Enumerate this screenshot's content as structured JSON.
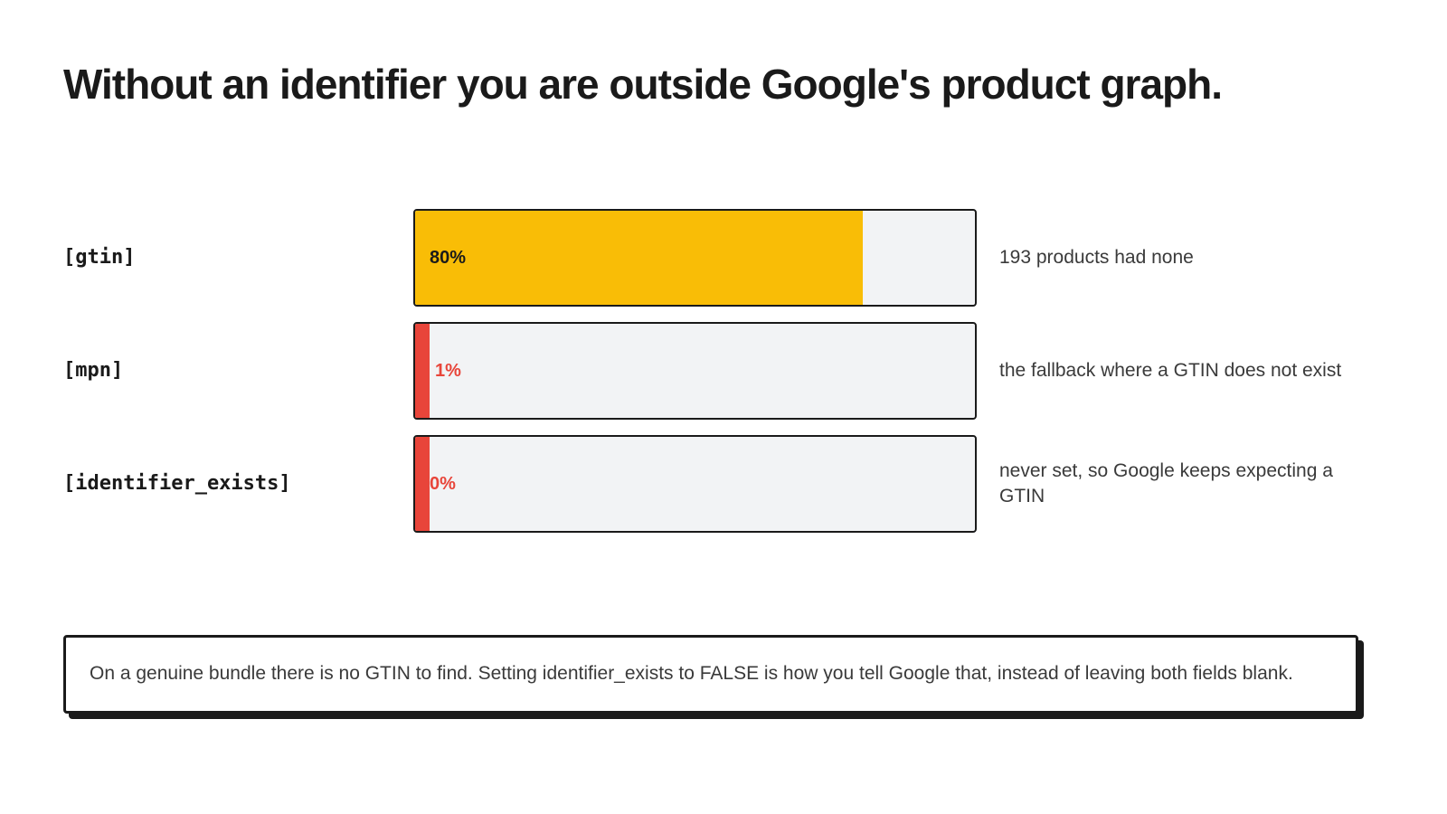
{
  "title": "Without an identifier you are outside Google's product graph.",
  "chart_data": {
    "type": "bar",
    "orientation": "horizontal",
    "title": "",
    "categories": [
      "[gtin]",
      "[mpn]",
      "[identifier_exists]"
    ],
    "values": [
      80,
      1,
      0
    ],
    "value_labels": [
      "80%",
      "1%",
      "0%"
    ],
    "unit": "%",
    "xlim": [
      0,
      100
    ],
    "notes": [
      "193 products had none",
      "the fallback where a GTIN does not exist",
      "never set, so Google keeps expecting a GTIN"
    ],
    "colors": [
      "#f9bd06",
      "#e8453a",
      "#e8453a"
    ],
    "label_colors": [
      "#1a1a1a",
      "#e8453a",
      "#e8453a"
    ],
    "track_color": "#f2f3f5"
  },
  "callout": {
    "text": "On a genuine bundle there is no GTIN to find. Setting identifier_exists to FALSE is how you tell Google that, instead of leaving both fields blank."
  }
}
